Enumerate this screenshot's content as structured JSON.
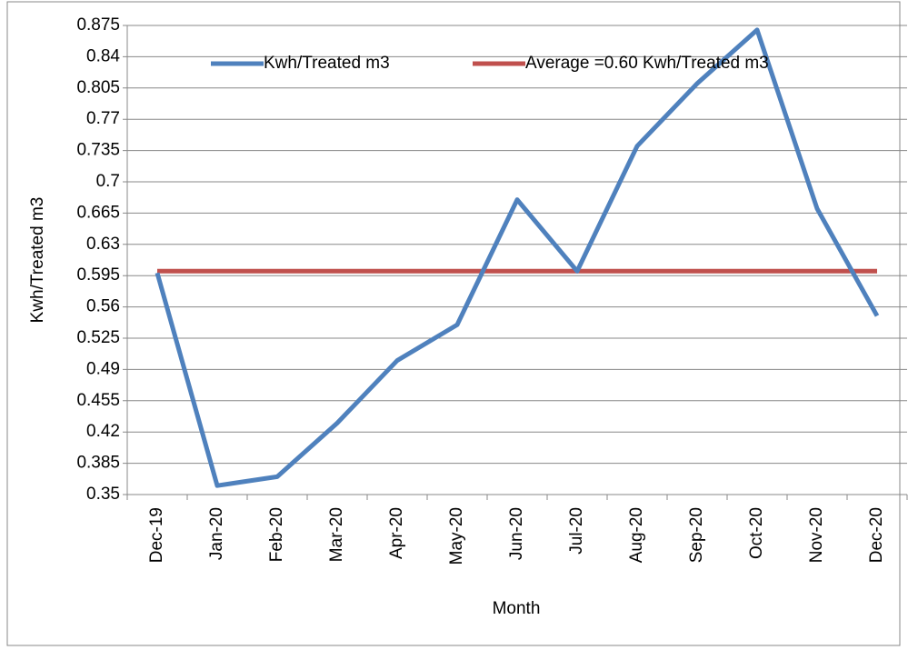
{
  "chart_data": {
    "type": "line",
    "y_label": "Kwh/Treated m3",
    "x_label": "Month",
    "categories": [
      "Dec-19",
      "Jan-20",
      "Feb-20",
      "Mar-20",
      "Apr-20",
      "May-20",
      "Jun-20",
      "Jul-20",
      "Aug-20",
      "Sep-20",
      "Oct-20",
      "Nov-20",
      "Dec-20"
    ],
    "series": [
      {
        "name": "Kwh/Treated m3",
        "color": "#4f81bd",
        "values": [
          0.598,
          0.36,
          0.37,
          0.43,
          0.5,
          0.54,
          0.68,
          0.6,
          0.74,
          0.81,
          0.87,
          0.67,
          0.55
        ]
      },
      {
        "name": "Average =0.60 Kwh/Treated m3",
        "color": "#c0504d",
        "values": [
          0.6,
          0.6,
          0.6,
          0.6,
          0.6,
          0.6,
          0.6,
          0.6,
          0.6,
          0.6,
          0.6,
          0.6,
          0.6
        ]
      }
    ],
    "ylim": [
      0.35,
      0.875
    ],
    "yticks": [
      0.35,
      0.385,
      0.42,
      0.455,
      0.49,
      0.525,
      0.56,
      0.595,
      0.63,
      0.665,
      0.7,
      0.735,
      0.77,
      0.805,
      0.84,
      0.875
    ],
    "grid": true,
    "legend": "top"
  }
}
